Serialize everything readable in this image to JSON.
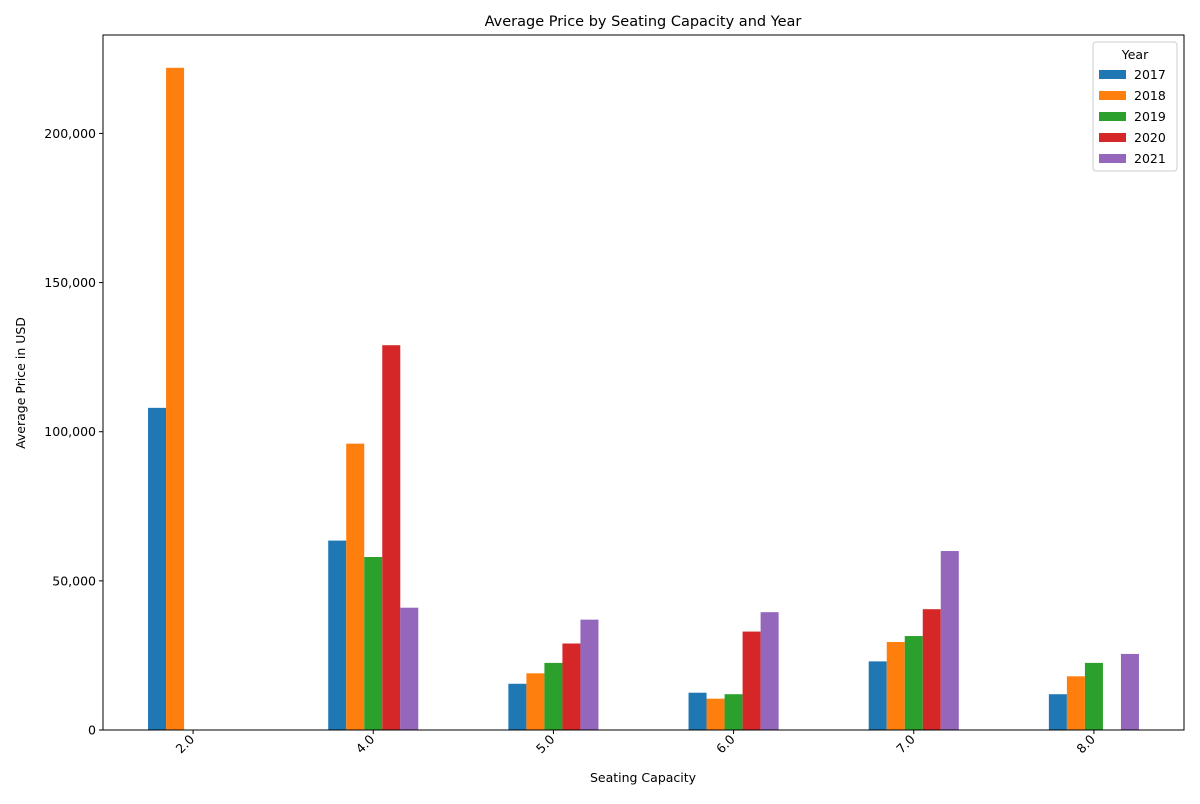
{
  "chart_data": {
    "type": "bar",
    "title": "Average Price by Seating Capacity and Year",
    "xlabel": "Seating Capacity",
    "ylabel": "Average Price in USD",
    "categories": [
      "2.0",
      "4.0",
      "5.0",
      "6.0",
      "7.0",
      "8.0"
    ],
    "ylim": [
      0,
      233000
    ],
    "yticks": [
      0,
      50000,
      100000,
      150000,
      200000
    ],
    "ytick_labels": [
      "0",
      "50,000",
      "100,000",
      "150,000",
      "200,000"
    ],
    "grid": false,
    "legend": {
      "title": "Year",
      "placement": "top-right"
    },
    "series": [
      {
        "name": "2017",
        "color": "#1f77b4",
        "values": [
          108000,
          63500,
          15500,
          12500,
          23000,
          12000
        ]
      },
      {
        "name": "2018",
        "color": "#ff7f0e",
        "values": [
          222000,
          96000,
          19000,
          10500,
          29500,
          18000
        ]
      },
      {
        "name": "2019",
        "color": "#2ca02c",
        "values": [
          null,
          58000,
          22500,
          12000,
          31500,
          22500
        ]
      },
      {
        "name": "2020",
        "color": "#d62728",
        "values": [
          null,
          129000,
          29000,
          33000,
          40500,
          null
        ]
      },
      {
        "name": "2021",
        "color": "#9467bd",
        "values": [
          null,
          41000,
          37000,
          39500,
          60000,
          25500
        ]
      }
    ]
  }
}
